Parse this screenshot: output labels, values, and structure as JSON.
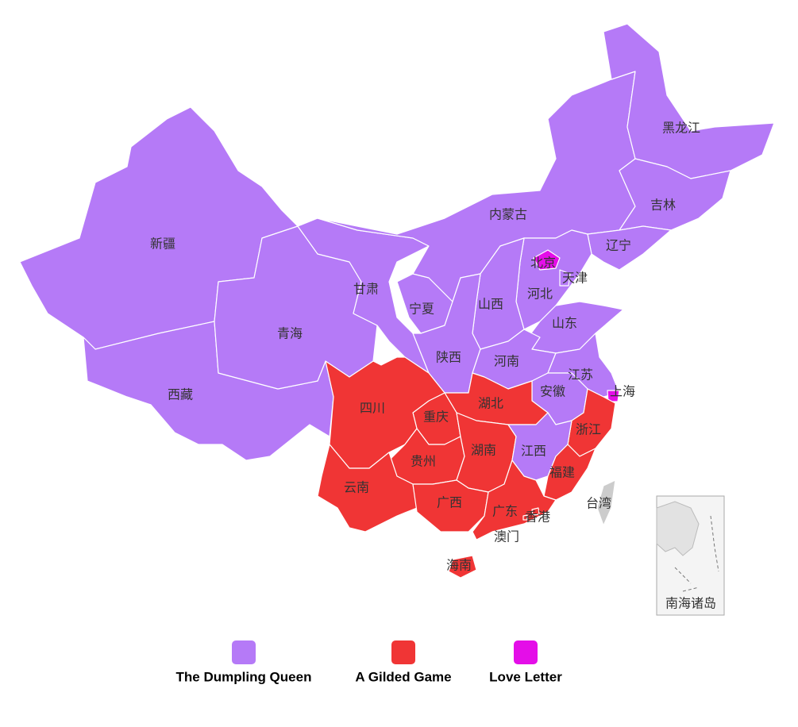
{
  "regions": [
    {
      "name": "新疆",
      "legend": "The Dumpling Queen"
    },
    {
      "name": "西藏",
      "legend": "The Dumpling Queen"
    },
    {
      "name": "青海",
      "legend": "The Dumpling Queen"
    },
    {
      "name": "甘肃",
      "legend": "The Dumpling Queen"
    },
    {
      "name": "宁夏",
      "legend": "The Dumpling Queen"
    },
    {
      "name": "内蒙古",
      "legend": "The Dumpling Queen"
    },
    {
      "name": "黑龙江",
      "legend": "The Dumpling Queen"
    },
    {
      "name": "吉林",
      "legend": "The Dumpling Queen"
    },
    {
      "name": "辽宁",
      "legend": "The Dumpling Queen"
    },
    {
      "name": "河北",
      "legend": "The Dumpling Queen"
    },
    {
      "name": "北京",
      "legend": "Love Letter"
    },
    {
      "name": "天津",
      "legend": "The Dumpling Queen"
    },
    {
      "name": "山西",
      "legend": "The Dumpling Queen"
    },
    {
      "name": "山东",
      "legend": "The Dumpling Queen"
    },
    {
      "name": "陕西",
      "legend": "The Dumpling Queen"
    },
    {
      "name": "河南",
      "legend": "The Dumpling Queen"
    },
    {
      "name": "江苏",
      "legend": "The Dumpling Queen"
    },
    {
      "name": "上海",
      "legend": "Love Letter"
    },
    {
      "name": "安徽",
      "legend": "The Dumpling Queen"
    },
    {
      "name": "浙江",
      "legend": "A Gilded Game"
    },
    {
      "name": "湖北",
      "legend": "A Gilded Game"
    },
    {
      "name": "重庆",
      "legend": "A Gilded Game"
    },
    {
      "name": "四川",
      "legend": "A Gilded Game"
    },
    {
      "name": "贵州",
      "legend": "A Gilded Game"
    },
    {
      "name": "湖南",
      "legend": "A Gilded Game"
    },
    {
      "name": "江西",
      "legend": "The Dumpling Queen"
    },
    {
      "name": "福建",
      "legend": "A Gilded Game"
    },
    {
      "name": "云南",
      "legend": "A Gilded Game"
    },
    {
      "name": "广西",
      "legend": "A Gilded Game"
    },
    {
      "name": "广东",
      "legend": "A Gilded Game"
    },
    {
      "name": "海南",
      "legend": "A Gilded Game"
    },
    {
      "name": "台湾",
      "legend": null
    },
    {
      "name": "香港",
      "legend": "A Gilded Game"
    },
    {
      "name": "澳门",
      "legend": "A Gilded Game"
    }
  ],
  "legend": [
    {
      "name": "The Dumpling Queen",
      "color": "#b57af7"
    },
    {
      "name": "A Gilded Game",
      "color": "#f03535"
    },
    {
      "name": "Love Letter",
      "color": "#e40ee8"
    }
  ],
  "no_data_color": "#cccccc",
  "inset_label": "南海诸岛"
}
